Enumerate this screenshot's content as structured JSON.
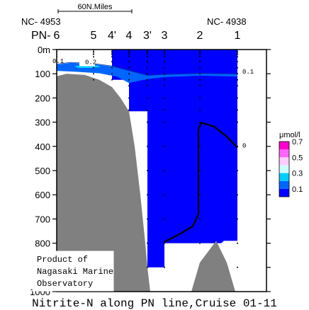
{
  "chart_data": {
    "type": "contour",
    "title": "Nitrite-N along PN line,Cruise 01-11",
    "scale_bar_label": "60N.Miles",
    "end_labels": {
      "left": "NC- 4953",
      "right": "NC- 4938"
    },
    "station_prefix": "PN-",
    "stations": [
      {
        "label": "6",
        "km": 0
      },
      {
        "label": "5",
        "km": 52
      },
      {
        "label": "4'",
        "km": 78
      },
      {
        "label": "4",
        "km": 102
      },
      {
        "label": "3'",
        "km": 128
      },
      {
        "label": "3",
        "km": 152
      },
      {
        "label": "2",
        "km": 202
      },
      {
        "label": "1",
        "km": 255
      }
    ],
    "x_range_km": [
      0,
      296
    ],
    "ylim": [
      0,
      1000
    ],
    "y_ticks": [
      0,
      100,
      200,
      300,
      400,
      500,
      600,
      700,
      800,
      900,
      1000
    ],
    "y_tick_labels": [
      "0m",
      "100",
      "200",
      "300",
      "400",
      "500",
      "600",
      "700",
      "800",
      "900",
      "1000"
    ],
    "contour_labels": [
      {
        "text": "0.1",
        "km": -6,
        "depth": 55
      },
      {
        "text": "0.2",
        "km": 40,
        "depth": 60
      },
      {
        "text": "0.1",
        "km": 262,
        "depth": 100
      },
      {
        "text": "0",
        "km": 262,
        "depth": 405
      }
    ],
    "colorbar": {
      "unit": "μmol/l",
      "levels": [
        0,
        0.1,
        0.2,
        0.3,
        0.4,
        0.5,
        0.6,
        0.7
      ],
      "colors": [
        "#0000ff",
        "#0066ff",
        "#00ccff",
        "#ccffff",
        "#ffccff",
        "#ff66ff",
        "#ff00cc",
        "#ff0000"
      ],
      "tick_labels": [
        {
          "text": "0.7",
          "level": 0.7
        },
        {
          "text": "0.5",
          "level": 0.5
        },
        {
          "text": "0.3",
          "level": 0.3
        },
        {
          "text": "0.1",
          "level": 0.1
        }
      ]
    },
    "bottom_profile": [
      [
        -2,
        130
      ],
      [
        0,
        110
      ],
      [
        14,
        100
      ],
      [
        40,
        105
      ],
      [
        60,
        125
      ],
      [
        78,
        155
      ],
      [
        90,
        200
      ],
      [
        102,
        255
      ],
      [
        110,
        400
      ],
      [
        118,
        600
      ],
      [
        125,
        800
      ],
      [
        128,
        900
      ],
      [
        132,
        1000
      ]
    ],
    "bottom_hill": [
      [
        190,
        1000
      ],
      [
        202,
        880
      ],
      [
        225,
        790
      ],
      [
        240,
        880
      ],
      [
        252,
        1000
      ]
    ],
    "data_extent": [
      [
        0,
        0
      ],
      [
        255,
        0
      ],
      [
        255,
        790
      ],
      [
        236,
        790
      ],
      [
        232,
        800
      ],
      [
        152,
        800
      ],
      [
        152,
        900
      ],
      [
        128,
        900
      ],
      [
        128,
        255
      ],
      [
        102,
        255
      ],
      [
        102,
        125
      ],
      [
        78,
        125
      ],
      [
        78,
        0
      ]
    ],
    "watermark": [
      "Product of",
      "Nagasaki Marine",
      "Observatory"
    ]
  }
}
